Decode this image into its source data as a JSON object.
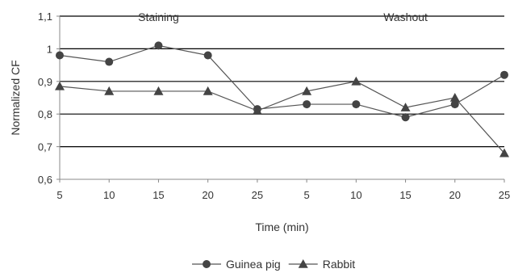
{
  "chart_data": {
    "type": "line",
    "categories": [
      "5",
      "10",
      "15",
      "20",
      "25",
      "5",
      "10",
      "15",
      "20",
      "25"
    ],
    "ylabel": "Normalized CF",
    "xlabel": "Time (min)",
    "ylim": [
      0.6,
      1.1
    ],
    "yticks": [
      "0,6",
      "0,7",
      "0,8",
      "0,9",
      "1",
      "1,1"
    ],
    "grid": "horizontal",
    "legend_position": "bottom",
    "annotations": [
      {
        "text": "Staining",
        "at_index": 2
      },
      {
        "text": "Washout",
        "at_index": 7
      }
    ],
    "series": [
      {
        "name": "Guinea pig",
        "marker": "circle",
        "values": [
          0.98,
          0.96,
          1.01,
          0.98,
          0.815,
          0.83,
          0.83,
          0.79,
          0.83,
          0.92
        ]
      },
      {
        "name": "Rabbit",
        "marker": "triangle",
        "values": [
          0.885,
          0.87,
          0.87,
          0.87,
          0.81,
          0.87,
          0.9,
          0.82,
          0.85,
          0.68
        ]
      }
    ],
    "colors": {
      "line": "#555555",
      "marker": "#444444",
      "grid": "#000000",
      "axis": "#888888"
    }
  }
}
